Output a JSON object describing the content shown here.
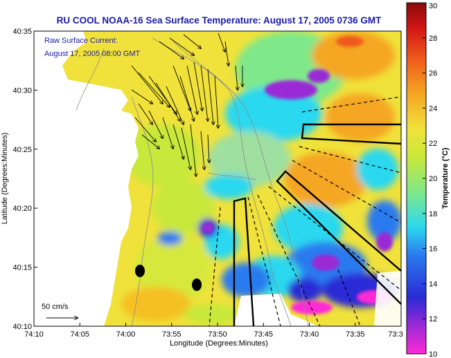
{
  "title": "RU COOL  NOAA-16  Sea Surface Temperature:  August 17, 2005 0736 GMT",
  "current_note": {
    "line1": "Raw Surface Current:",
    "line2": "August 17, 2005 08:00 GMT"
  },
  "scale_label": "50 cm/s",
  "axes": {
    "xlabel": "Longitude (Degrees:Minutes)",
    "ylabel": "Latitude (Degrees:Minutes)",
    "x_ticks": [
      "74:10",
      "74:05",
      "74:00",
      "73:55",
      "73:50",
      "73:45",
      "73:40",
      "73:35",
      "73:3"
    ],
    "y_ticks": [
      "40:35",
      "40:30",
      "40:25",
      "40:20",
      "40:15",
      "40:10"
    ]
  },
  "colorbar": {
    "label": "Temperature (°C)",
    "min": 10,
    "max": 30,
    "ticks": [
      "30",
      "28",
      "26",
      "24",
      "22",
      "20",
      "18",
      "16",
      "14",
      "12",
      "10"
    ]
  },
  "colors": {
    "title": "#1a1aa6",
    "land": "#ffffff",
    "sst_mid": "#f0e23a"
  }
}
